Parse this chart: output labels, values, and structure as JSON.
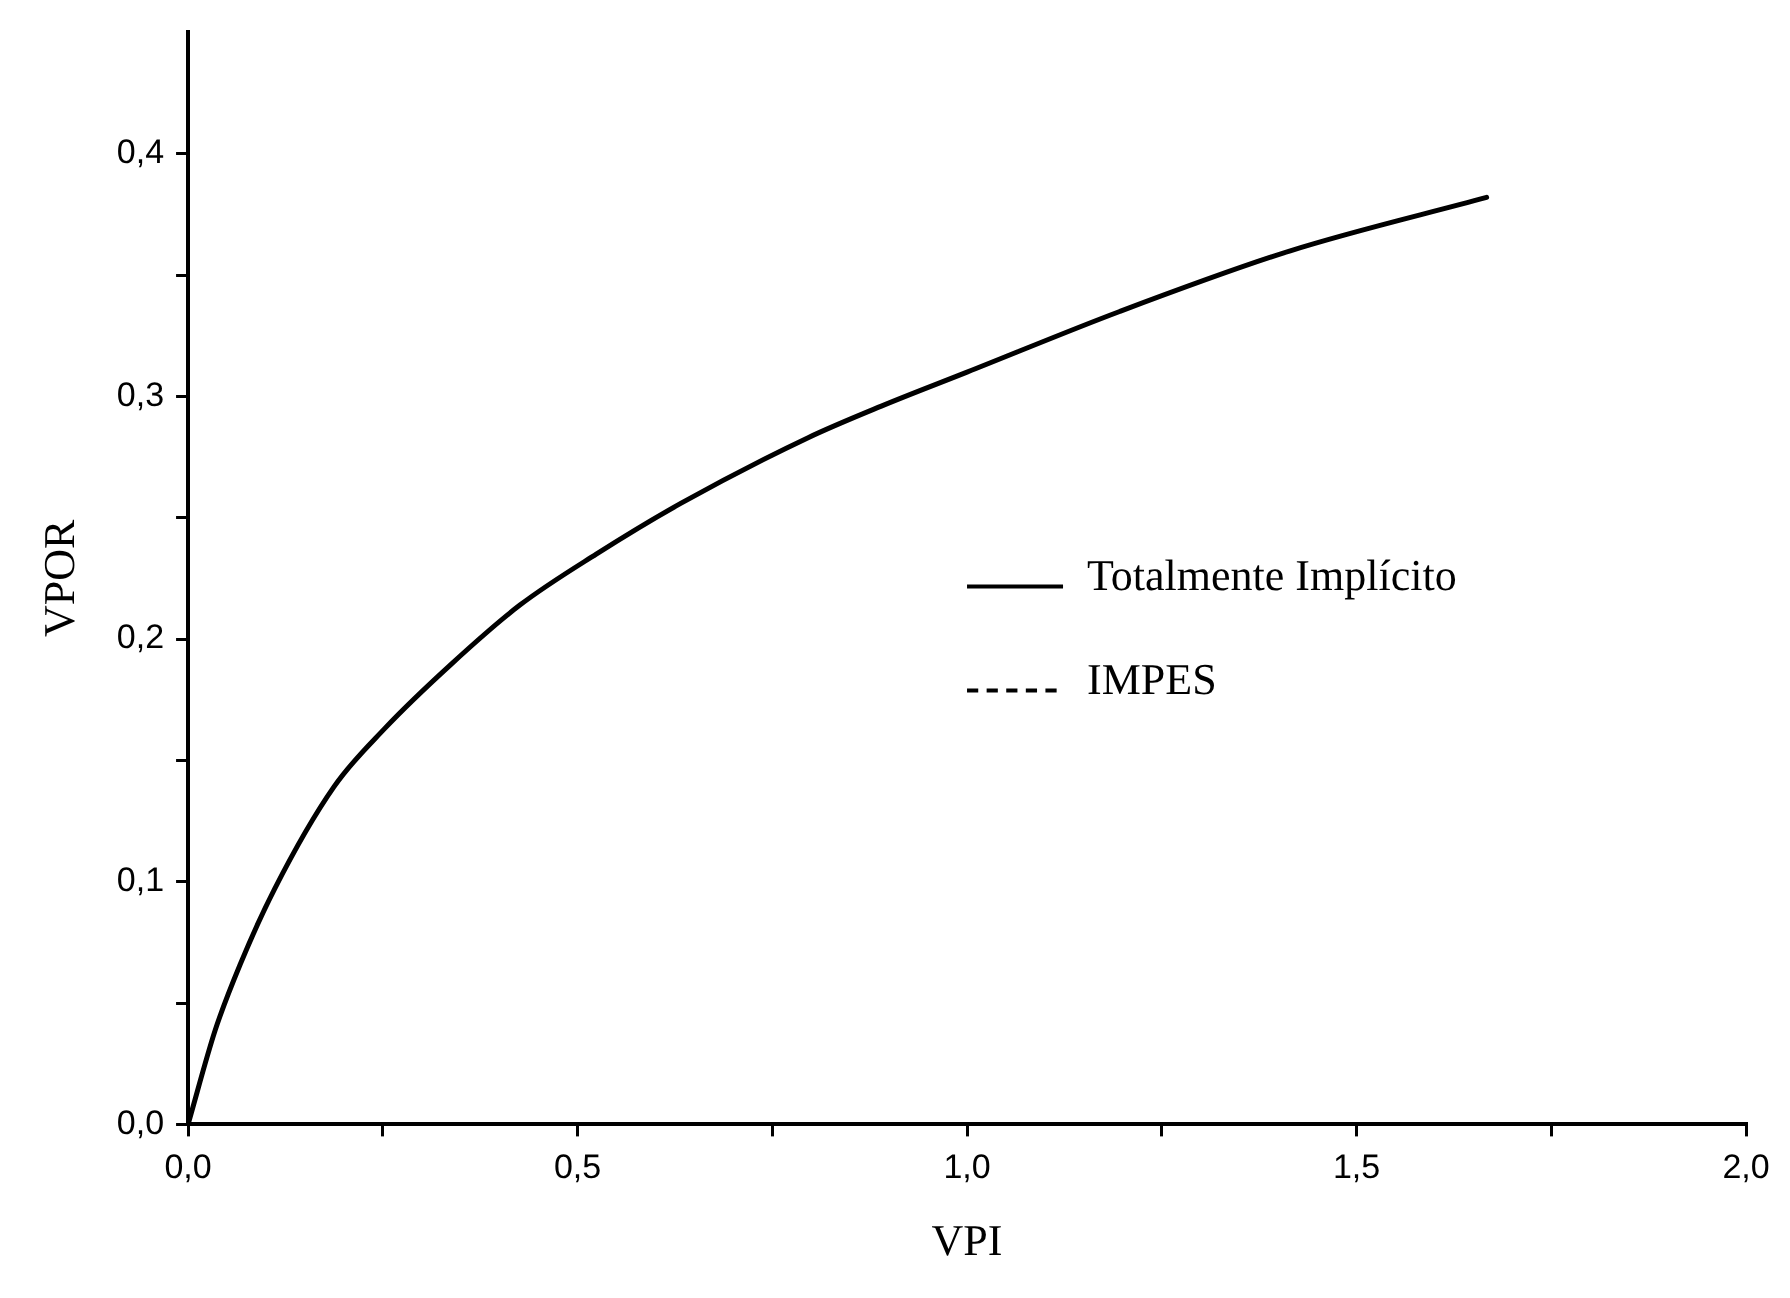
{
  "chart_data": {
    "type": "line",
    "xlabel": "VPI",
    "ylabel": "VPOR",
    "xlim": [
      0,
      2
    ],
    "ylim": [
      0,
      0.45
    ],
    "xticks": [
      {
        "value": 0,
        "label": "0,0"
      },
      {
        "value": 0.25,
        "label": null
      },
      {
        "value": 0.5,
        "label": "0,5"
      },
      {
        "value": 0.75,
        "label": null
      },
      {
        "value": 1,
        "label": "1,0"
      },
      {
        "value": 1.25,
        "label": null
      },
      {
        "value": 1.5,
        "label": "1,5"
      },
      {
        "value": 1.75,
        "label": null
      },
      {
        "value": 2,
        "label": "2,0"
      }
    ],
    "yticks": [
      {
        "value": 0,
        "label": "0,0"
      },
      {
        "value": 0.05,
        "label": null
      },
      {
        "value": 0.1,
        "label": "0,1"
      },
      {
        "value": 0.15,
        "label": null
      },
      {
        "value": 0.2,
        "label": "0,2"
      },
      {
        "value": 0.25,
        "label": null
      },
      {
        "value": 0.3,
        "label": "0,3"
      },
      {
        "value": 0.35,
        "label": null
      },
      {
        "value": 0.4,
        "label": "0,4"
      }
    ],
    "x": [
      0,
      0.035,
      0.067,
      0.111,
      0.187,
      0.252,
      0.339,
      0.426,
      0.524,
      0.633,
      0.796,
      0.89,
      1.0,
      1.196,
      1.415,
      1.667
    ],
    "series": [
      {
        "name": "Totalmente Implícito",
        "color": "#000000",
        "line_style": "solid",
        "values": [
          0,
          0.039,
          0.066,
          0.097,
          0.139,
          0.163,
          0.19,
          0.214,
          0.235,
          0.256,
          0.283,
          0.296,
          0.31,
          0.335,
          0.36,
          0.382
        ]
      },
      {
        "name": "IMPES",
        "color": "#000000",
        "line_style": "dashed",
        "values": [
          null,
          null,
          null,
          null,
          null,
          null,
          null,
          null,
          null,
          null,
          null,
          null,
          null,
          null,
          null,
          null
        ]
      }
    ],
    "legend": "right",
    "grid": false,
    "marker": "none"
  }
}
